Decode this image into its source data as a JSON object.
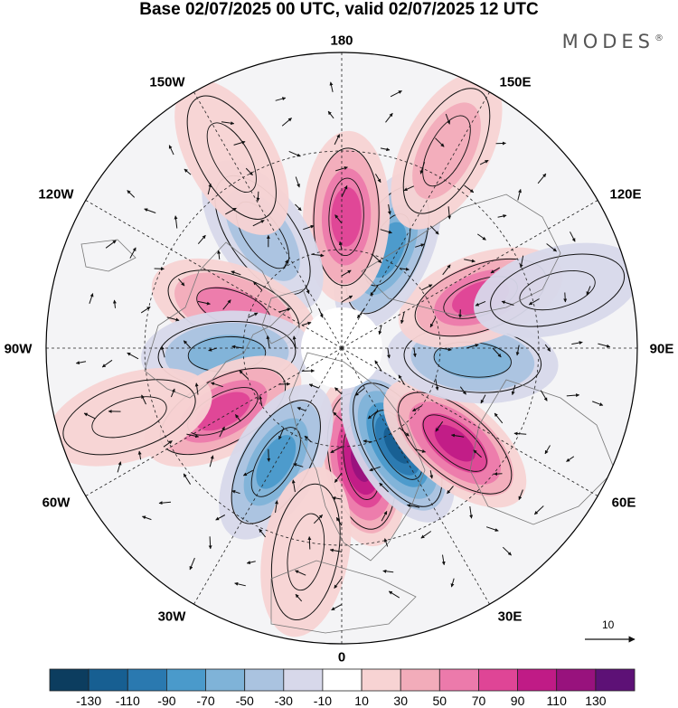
{
  "title": "Base 02/07/2025 00 UTC, valid 02/07/2025 12 UTC",
  "brand": "MODES",
  "brand_mark": "®",
  "longitude_labels": {
    "lon_180": "180",
    "lon_150e": "150E",
    "lon_120e": "120E",
    "lon_90e": "90E",
    "lon_60e": "60E",
    "lon_30e": "30E",
    "lon_0": "0",
    "lon_30w": "30W",
    "lon_60w": "60W",
    "lon_90w": "90W",
    "lon_120w": "120W",
    "lon_150w": "150W"
  },
  "reference_vector": {
    "label": "10"
  },
  "colorbar": {
    "ticks": [
      "-130",
      "-110",
      "-90",
      "-70",
      "-50",
      "-30",
      "-10",
      "10",
      "30",
      "50",
      "70",
      "90",
      "110",
      "130"
    ],
    "colors": [
      "#0c3d5f",
      "#175f92",
      "#2a79b0",
      "#4a9acb",
      "#7fb3d8",
      "#aac3e0",
      "#d7d8ea",
      "#ffffff",
      "#f7d3d3",
      "#f2acba",
      "#ec7aab",
      "#df4596",
      "#c01b86",
      "#98127d",
      "#5d1176"
    ]
  },
  "anomaly_cells": [
    {
      "lon": 10,
      "lat": 55,
      "value": 120
    },
    {
      "lon": 30,
      "lat": 56,
      "value": -110
    },
    {
      "lon": 50,
      "lat": 45,
      "value": 95
    },
    {
      "lon": 85,
      "lat": 50,
      "value": -65
    },
    {
      "lon": 110,
      "lat": 45,
      "value": 70
    },
    {
      "lon": 155,
      "lat": 57,
      "value": -85
    },
    {
      "lon": 178,
      "lat": 50,
      "value": 70
    },
    {
      "lon": 152,
      "lat": 22,
      "value": 45
    },
    {
      "lon": -145,
      "lat": 48,
      "value": -40
    },
    {
      "lon": -110,
      "lat": 55,
      "value": 60
    },
    {
      "lon": -87,
      "lat": 55,
      "value": -55
    },
    {
      "lon": -62,
      "lat": 49,
      "value": 85
    },
    {
      "lon": -30,
      "lat": 50,
      "value": -85
    },
    {
      "lon": -150,
      "lat": 23,
      "value": 25
    },
    {
      "lon": 105,
      "lat": 22,
      "value": -15
    },
    {
      "lon": -72,
      "lat": 22,
      "value": 25
    },
    {
      "lon": -10,
      "lat": 27,
      "value": 25
    }
  ]
}
